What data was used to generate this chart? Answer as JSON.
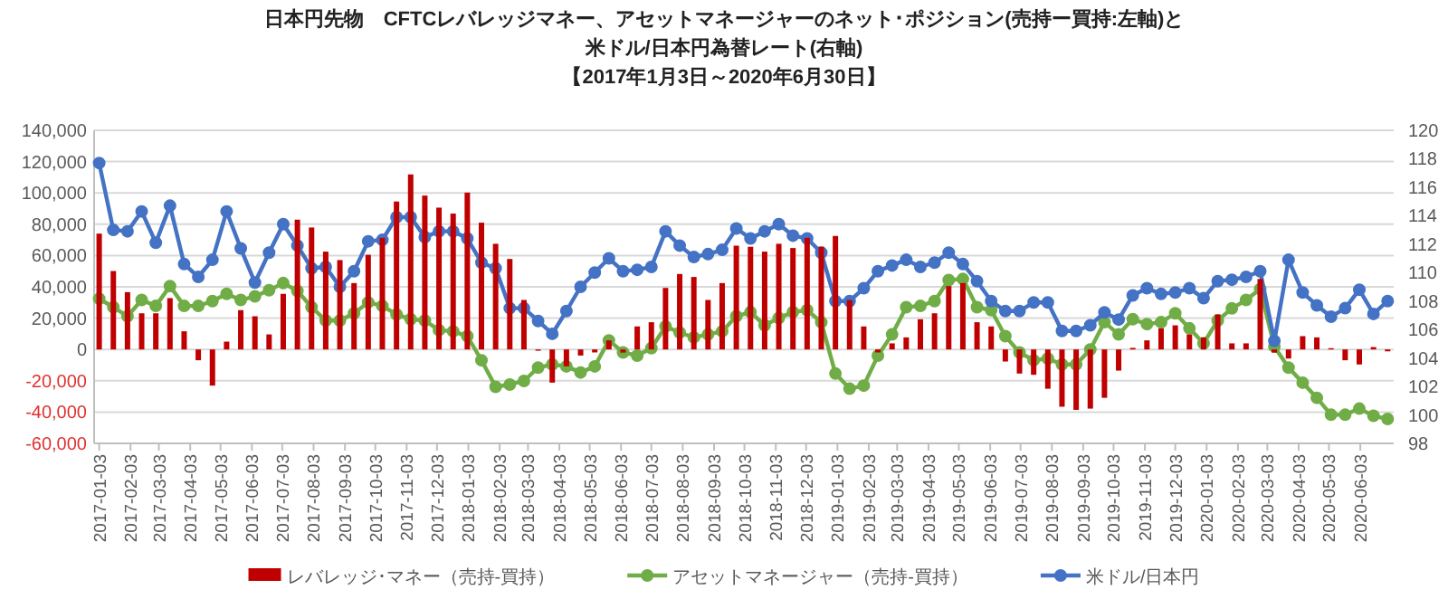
{
  "chart_data": {
    "type": "line",
    "title": "日本円先物　CFTCレバレッジマネー、アセットマネージャーのネット･ポジション(売持ー買持:左軸)と",
    "subtitle": "米ドル/日本円為替レート(右軸)",
    "annotations": [
      "【2017年1月3日～2020年6月30日】"
    ],
    "x": [
      "2017-01-03",
      "2017-01-17",
      "2017-01-31",
      "2017-02-14",
      "2017-02-28",
      "2017-03-14",
      "2017-03-28",
      "2017-04-11",
      "2017-04-25",
      "2017-05-09",
      "2017-05-23",
      "2017-06-06",
      "2017-06-20",
      "2017-07-04",
      "2017-07-18",
      "2017-08-01",
      "2017-08-15",
      "2017-08-29",
      "2017-09-12",
      "2017-09-26",
      "2017-10-10",
      "2017-10-24",
      "2017-11-07",
      "2017-11-21",
      "2017-12-05",
      "2017-12-19",
      "2018-01-02",
      "2018-01-16",
      "2018-01-30",
      "2018-02-13",
      "2018-02-27",
      "2018-03-13",
      "2018-03-27",
      "2018-04-10",
      "2018-04-24",
      "2018-05-08",
      "2018-05-22",
      "2018-06-05",
      "2018-06-19",
      "2018-07-03",
      "2018-07-17",
      "2018-07-31",
      "2018-08-14",
      "2018-08-28",
      "2018-09-11",
      "2018-09-25",
      "2018-10-09",
      "2018-10-23",
      "2018-11-06",
      "2018-11-20",
      "2018-12-04",
      "2018-12-18",
      "2019-01-01",
      "2019-01-15",
      "2019-01-29",
      "2019-02-12",
      "2019-02-26",
      "2019-03-12",
      "2019-03-26",
      "2019-04-09",
      "2019-04-23",
      "2019-05-07",
      "2019-05-21",
      "2019-06-04",
      "2019-06-18",
      "2019-07-02",
      "2019-07-16",
      "2019-07-30",
      "2019-08-13",
      "2019-08-27",
      "2019-09-10",
      "2019-09-24",
      "2019-10-08",
      "2019-10-22",
      "2019-11-05",
      "2019-11-19",
      "2019-12-03",
      "2019-12-17",
      "2019-12-31",
      "2020-01-14",
      "2020-01-28",
      "2020-02-11",
      "2020-02-25",
      "2020-03-10",
      "2020-03-24",
      "2020-04-07",
      "2020-04-21",
      "2020-05-05",
      "2020-05-19",
      "2020-06-02",
      "2020-06-16",
      "2020-06-30"
    ],
    "series": [
      {
        "name": "レバレッジ･マネー（売持-買持）",
        "type": "bar",
        "color": "#c00000",
        "values": [
          74000,
          50100,
          36600,
          23100,
          23100,
          32800,
          11600,
          -6900,
          -23100,
          5000,
          25100,
          21200,
          9600,
          35500,
          82900,
          77900,
          62500,
          57100,
          42400,
          60500,
          71300,
          94500,
          111800,
          98300,
          90600,
          86800,
          100200,
          81000,
          67500,
          57800,
          31600,
          -800,
          -21200,
          -10800,
          -3900,
          -1900,
          5800,
          -2000,
          14700,
          17400,
          39300,
          48200,
          46300,
          31600,
          42400,
          66300,
          65600,
          62500,
          67500,
          64800,
          71300,
          65600,
          72500,
          31600,
          14700,
          -1900,
          3900,
          7700,
          19300,
          23100,
          40500,
          42400,
          17400,
          14700,
          -7700,
          -15400,
          -16200,
          -25100,
          -36600,
          -38600,
          -37800,
          -30900,
          -13500,
          1000,
          5800,
          13500,
          15400,
          9600,
          7700,
          22400,
          3900,
          3900,
          45000,
          -2000,
          -5800,
          8500,
          7700,
          800,
          -6900,
          -9600,
          1500,
          -1200
        ]
      },
      {
        "name": "アセットマネージャー（売持-買持）",
        "color": "#70ad47",
        "values": [
          32400,
          27000,
          21200,
          31600,
          27800,
          40500,
          27800,
          27800,
          30900,
          35500,
          31600,
          33900,
          37800,
          42400,
          37400,
          27000,
          18500,
          18500,
          23100,
          30100,
          27800,
          22400,
          19300,
          18500,
          12300,
          11600,
          8500,
          -6900,
          -23900,
          -22400,
          -20100,
          -11600,
          -9600,
          -10800,
          -14700,
          -10800,
          5800,
          -1900,
          -3900,
          800,
          14700,
          10800,
          7700,
          9600,
          11600,
          21200,
          23900,
          15400,
          20100,
          23900,
          25100,
          17400,
          -15400,
          -25100,
          -23100,
          -3900,
          9600,
          27000,
          27800,
          30900,
          44300,
          45000,
          27000,
          25100,
          8500,
          -1900,
          -6900,
          -5800,
          -9600,
          -9600,
          0,
          17400,
          9600,
          19300,
          16200,
          17400,
          23100,
          13500,
          3900,
          18500,
          26200,
          31600,
          38600,
          1900,
          -11600,
          -21200,
          -30900,
          -41700,
          -41700,
          -37800,
          -42400,
          -44400
        ]
      },
      {
        "name": "米ドル/日本円",
        "axis": "y2",
        "color": "#4472c4",
        "values": [
          117.7,
          113.0,
          112.9,
          114.3,
          112.1,
          114.7,
          110.6,
          109.7,
          110.9,
          114.3,
          111.7,
          109.3,
          111.4,
          113.4,
          111.9,
          110.3,
          110.4,
          109.0,
          110.1,
          112.2,
          112.3,
          113.9,
          113.9,
          112.5,
          112.9,
          112.9,
          112.4,
          110.7,
          110.3,
          107.5,
          107.5,
          106.6,
          105.7,
          107.3,
          109.0,
          110.0,
          111.0,
          110.1,
          110.2,
          110.4,
          112.9,
          111.9,
          111.1,
          111.3,
          111.6,
          113.1,
          112.4,
          112.9,
          113.4,
          112.6,
          112.4,
          111.4,
          108.0,
          108.0,
          108.9,
          110.1,
          110.5,
          110.9,
          110.4,
          110.7,
          111.4,
          110.6,
          109.4,
          108.0,
          107.3,
          107.3,
          107.9,
          107.9,
          105.9,
          105.9,
          106.3,
          107.2,
          106.7,
          108.4,
          108.9,
          108.5,
          108.6,
          108.9,
          108.2,
          109.4,
          109.5,
          109.7,
          110.1,
          105.2,
          110.9,
          108.6,
          107.7,
          106.9,
          107.5,
          108.8,
          107.1,
          108.0
        ]
      }
    ],
    "xlim": [
      "2016-12-29",
      "2020-07-06"
    ],
    "xticks": [
      "2017-01-03",
      "2017-02-03",
      "2017-03-03",
      "2017-04-03",
      "2017-05-03",
      "2017-06-03",
      "2017-07-03",
      "2017-08-03",
      "2017-09-03",
      "2017-10-03",
      "2017-11-03",
      "2017-12-03",
      "2018-01-03",
      "2018-02-03",
      "2018-03-03",
      "2018-04-03",
      "2018-05-03",
      "2018-06-03",
      "2018-07-03",
      "2018-08-03",
      "2018-09-03",
      "2018-10-03",
      "2018-11-03",
      "2018-12-03",
      "2019-01-03",
      "2019-02-03",
      "2019-03-03",
      "2019-04-03",
      "2019-05-03",
      "2019-06-03",
      "2019-07-03",
      "2019-08-03",
      "2019-09-03",
      "2019-10-03",
      "2019-11-03",
      "2019-12-03",
      "2020-01-03",
      "2020-02-03",
      "2020-03-03",
      "2020-04-03",
      "2020-05-03",
      "2020-06-03"
    ],
    "ylim": [
      -60000,
      140000
    ],
    "yticks": [
      {
        "value": -60000,
        "label": "-60,000"
      },
      {
        "value": -40000,
        "label": "-40,000"
      },
      {
        "value": -20000,
        "label": "-20,000"
      },
      {
        "value": 0,
        "label": "0"
      },
      {
        "value": 20000,
        "label": "20,000"
      },
      {
        "value": 40000,
        "label": "40,000"
      },
      {
        "value": 60000,
        "label": "60,000"
      },
      {
        "value": 80000,
        "label": "80,000"
      },
      {
        "value": 100000,
        "label": "100,000"
      },
      {
        "value": 120000,
        "label": "120,000"
      },
      {
        "value": 140000,
        "label": "140,000"
      }
    ],
    "y2lim": [
      98,
      120
    ],
    "y2ticks": [
      98,
      100,
      102,
      104,
      106,
      108,
      110,
      112,
      114,
      116,
      118,
      120
    ],
    "grid": "y",
    "legend": "bottom",
    "marker": "circle"
  }
}
